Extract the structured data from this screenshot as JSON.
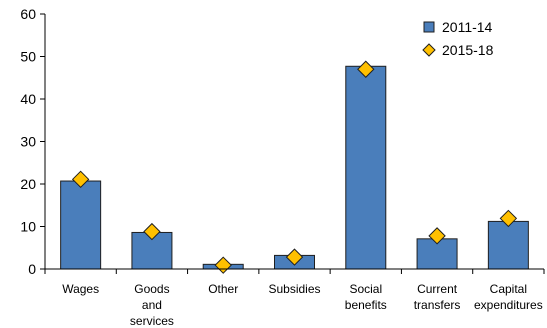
{
  "chart_data": {
    "type": "bar",
    "title": "",
    "xlabel": "",
    "ylabel": "",
    "ylim": [
      0,
      60
    ],
    "yticks": [
      0,
      10,
      20,
      30,
      40,
      50,
      60
    ],
    "grid": false,
    "legend_position": "top-right",
    "categories": [
      [
        "Wages"
      ],
      [
        "Goods",
        "and",
        "services"
      ],
      [
        "Other"
      ],
      [
        "Subsidies"
      ],
      [
        "Social",
        "benefits"
      ],
      [
        "Current",
        "transfers"
      ],
      [
        "Capital",
        "expenditures"
      ]
    ],
    "series": [
      {
        "name": "2011-14",
        "kind": "bar",
        "color": "#4a7ebb",
        "values": [
          20.7,
          8.6,
          1.1,
          3.2,
          47.7,
          7.1,
          11.2
        ]
      },
      {
        "name": "2015-18",
        "kind": "diamond-marker",
        "color": "#ffc000",
        "values": [
          21.1,
          8.8,
          0.9,
          2.8,
          47.0,
          7.8,
          11.9
        ]
      }
    ]
  }
}
